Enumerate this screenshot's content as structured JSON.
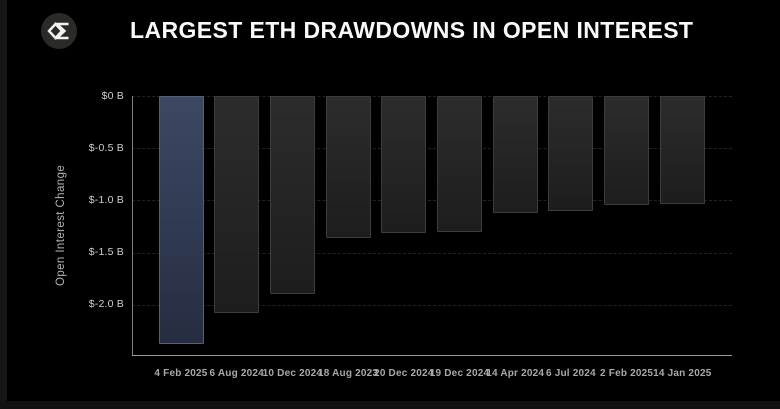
{
  "header": {
    "title": "LARGEST ETH DRAWDOWNS IN OPEN INTEREST",
    "logo_icon": "sigma-diamond-logo"
  },
  "chart_data": {
    "type": "bar",
    "title": "LARGEST ETH DRAWDOWNS IN OPEN INTEREST",
    "xlabel": "",
    "ylabel": "Open Interest Change",
    "categories": [
      "4 Feb 2025",
      "6 Aug 2024",
      "10 Dec 2024",
      "18 Aug 2023",
      "20 Dec 2024",
      "19 Dec 2024",
      "14 Apr 2024",
      "6 Jul 2024",
      "2 Feb 2025",
      "14 Jan 2025"
    ],
    "values": [
      -2.37,
      -2.08,
      -1.9,
      -1.36,
      -1.31,
      -1.3,
      -1.12,
      -1.1,
      -1.04,
      -1.03
    ],
    "unit": "billion USD",
    "yticks": [
      {
        "label": "$0 B",
        "value": 0
      },
      {
        "label": "$-0.5 B",
        "value": -0.5
      },
      {
        "label": "$-1.0 B",
        "value": -1.0
      },
      {
        "label": "$-1.5 B",
        "value": -1.5
      },
      {
        "label": "$-2.0 B",
        "value": -2.0
      }
    ],
    "ylim": [
      -2.48,
      0
    ],
    "grid": "horizontal-dashed",
    "legend": "none",
    "highlight_index": 0,
    "colors": {
      "background": "#000000",
      "bar_fill": "#262626",
      "bar_border": "#3d3d3d",
      "highlight_fill": "#38425c",
      "highlight_border": "#546080",
      "axis_line": "#9a9a9a",
      "tick_text": "#cfcfcf",
      "title_text": "#fafafa"
    }
  }
}
